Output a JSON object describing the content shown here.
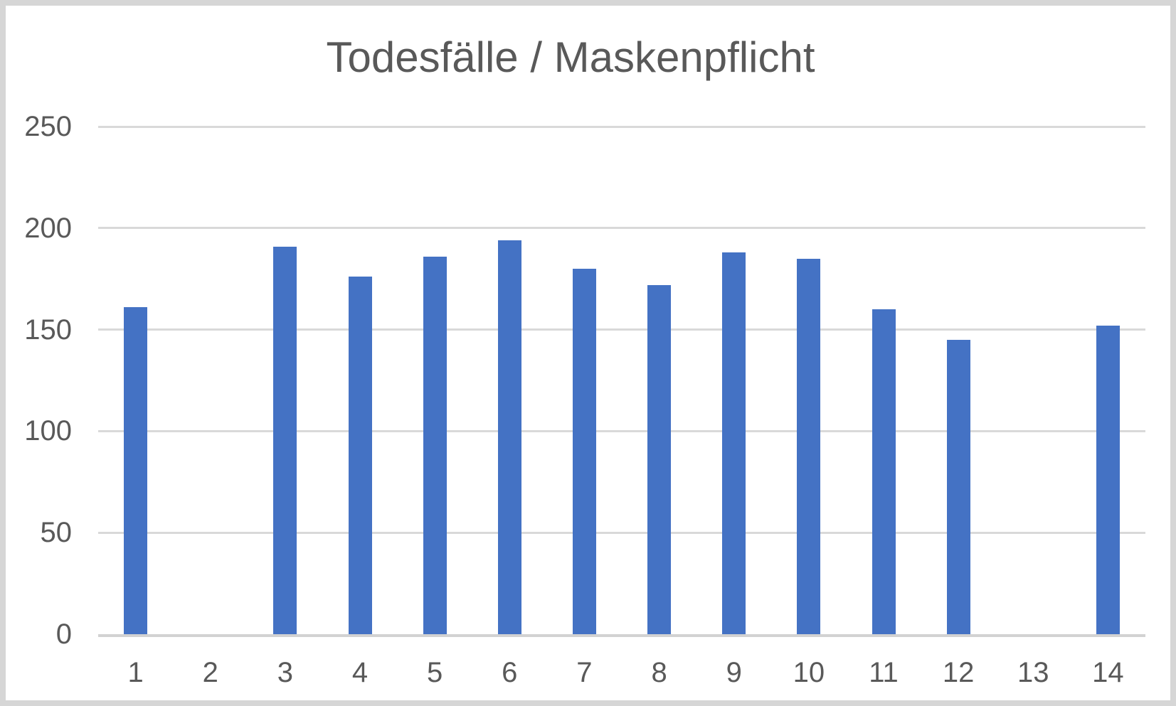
{
  "chart_data": {
    "type": "bar",
    "title": "Todesfälle / Maskenpflicht",
    "categories": [
      "1",
      "2",
      "3",
      "4",
      "5",
      "6",
      "7",
      "8",
      "9",
      "10",
      "11",
      "12",
      "13",
      "14"
    ],
    "values": [
      161,
      0,
      191,
      176,
      186,
      194,
      180,
      172,
      188,
      185,
      160,
      145,
      0,
      152
    ],
    "xlabel": "",
    "ylabel": "",
    "ylim": [
      0,
      250
    ],
    "yticks": [
      0,
      50,
      100,
      150,
      200,
      250
    ],
    "grid": true,
    "legend": "none",
    "colors": {
      "bar_fill": "#4472C4",
      "gridline": "#D9D9D9",
      "baseline": "#D2D2D2",
      "tick_label": "#595959",
      "title": "#595959",
      "background": "#FFFFFF",
      "frame_border": "#D6D6D6"
    }
  }
}
